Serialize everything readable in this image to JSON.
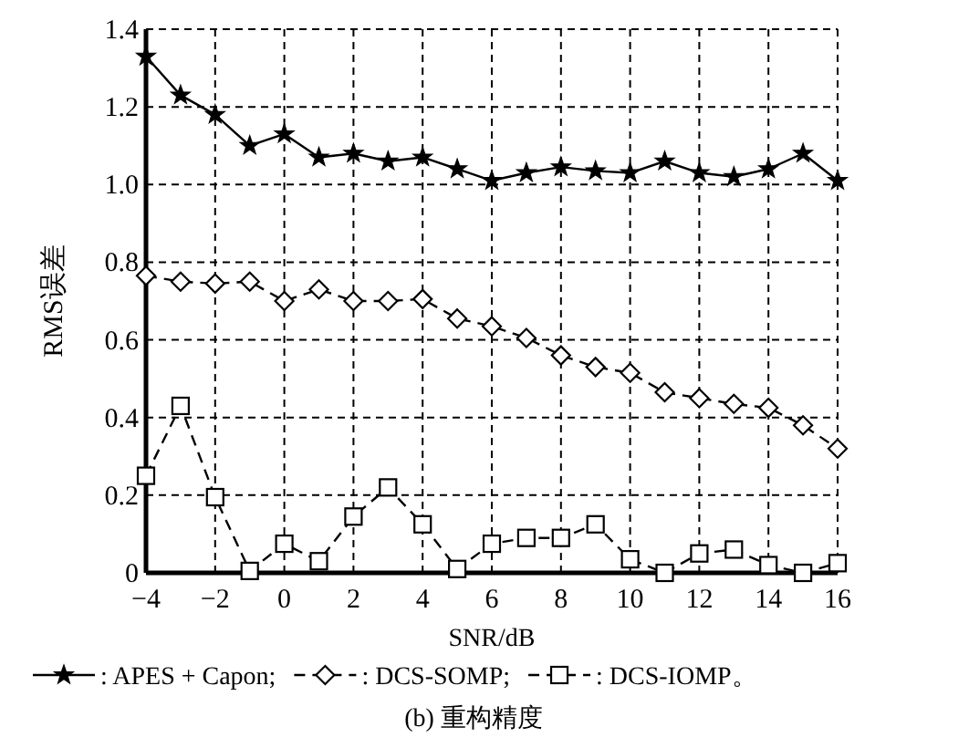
{
  "chart_data": {
    "type": "line",
    "title": "(b) 重构精度",
    "xlabel": "SNR/dB",
    "ylabel": "RMS误差",
    "x": [
      -4,
      -3,
      -2,
      -1,
      0,
      1,
      2,
      3,
      4,
      5,
      6,
      7,
      8,
      9,
      10,
      11,
      12,
      13,
      14,
      15,
      16
    ],
    "xlim": [
      -4,
      16
    ],
    "xticks": [
      -4,
      -2,
      0,
      2,
      4,
      6,
      8,
      10,
      12,
      14,
      16
    ],
    "ylim": [
      0,
      1.4
    ],
    "yticks": [
      0,
      {
        "value": 0.2,
        "label": "0.2"
      },
      {
        "value": 0.4,
        "label": "0.4"
      },
      {
        "value": 0.6,
        "label": "0.6"
      },
      {
        "value": 0.8,
        "label": "0.8"
      },
      {
        "value": 1,
        "label": "1.0"
      },
      {
        "value": 1.2,
        "label": "1.2"
      },
      {
        "value": 1.4,
        "label": "1.4"
      }
    ],
    "grid": true,
    "legend": "bottom",
    "series": [
      {
        "name": ": APES + Capon;",
        "color": "#000000",
        "marker": "star",
        "line_style": "solid",
        "values": [
          1.33,
          1.23,
          1.18,
          1.1,
          1.13,
          1.07,
          1.08,
          1.06,
          1.07,
          1.04,
          1.01,
          1.03,
          1.045,
          1.035,
          1.03,
          1.06,
          1.03,
          1.02,
          1.04,
          1.08,
          1.01
        ]
      },
      {
        "name": ": DCS-SOMP;",
        "color": "#000000",
        "marker": "diamond",
        "line_style": "dashed",
        "values": [
          0.765,
          0.75,
          0.745,
          0.75,
          0.7,
          0.73,
          0.7,
          0.7,
          0.705,
          0.655,
          0.635,
          0.605,
          0.56,
          0.53,
          0.515,
          0.465,
          0.45,
          0.435,
          0.425,
          0.38,
          0.32
        ]
      },
      {
        "name": ": DCS-IOMP。",
        "color": "#000000",
        "marker": "square",
        "line_style": "dashed",
        "values": [
          0.25,
          0.43,
          0.195,
          0.005,
          0.075,
          0.03,
          0.145,
          0.22,
          0.125,
          0.01,
          0.075,
          0.09,
          0.09,
          0.125,
          0.035,
          0,
          0.05,
          0.06,
          0.02,
          0,
          0.025
        ]
      }
    ]
  }
}
